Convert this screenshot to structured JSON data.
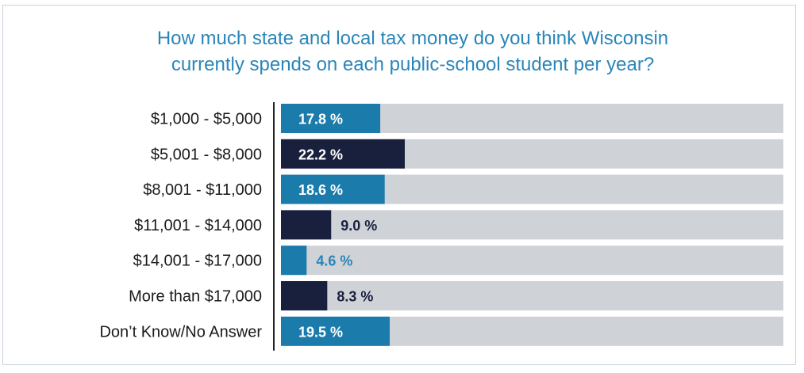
{
  "chart_data": {
    "type": "bar",
    "orientation": "horizontal",
    "title": [
      "How much state and local tax money do you think Wisconsin",
      "currently spends on each public-school student per year?"
    ],
    "categories": [
      "$1,000 - $5,000",
      "$5,001 - $8,000",
      "$8,001 - $11,000",
      "$11,001 - $14,000",
      "$14,001 - $17,000",
      "More than $17,000",
      "Don’t Know/No Answer"
    ],
    "values": [
      17.8,
      22.2,
      18.6,
      9.0,
      4.6,
      8.3,
      19.5
    ],
    "value_labels": [
      "17.8 %",
      "22.2 %",
      "18.6 %",
      "9.0 %",
      "4.6 %",
      "8.3 %",
      "19.5 %"
    ],
    "xlim": [
      0,
      100
    ],
    "grid": false,
    "legend": "none",
    "colors": {
      "title": "#2a86b8",
      "bar_light": "#1b7bab",
      "bar_dark": "#19203e",
      "track": "#cfd2d6",
      "label_on_bar": "#ffffff",
      "label_outside_dark": "#19203e",
      "label_outside_light": "#2a86b8",
      "axis": "#222222",
      "category_text": "#1b1b1b"
    },
    "bar_color_pattern": [
      "light",
      "dark",
      "light",
      "dark",
      "light",
      "dark",
      "light"
    ]
  }
}
